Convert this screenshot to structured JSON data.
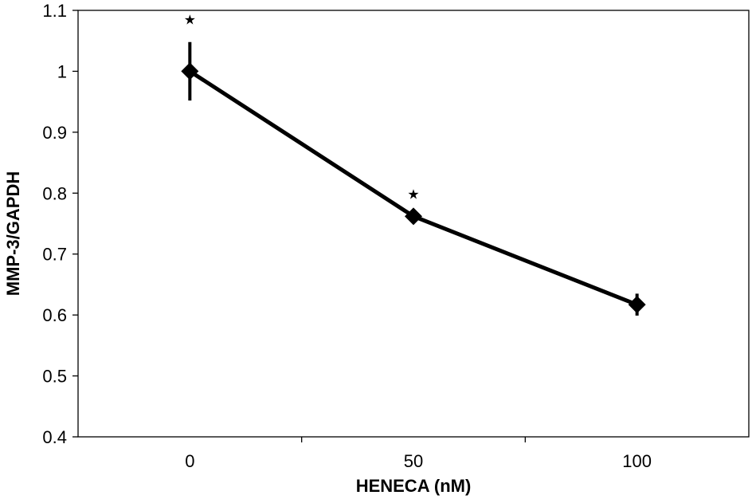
{
  "chart_data": {
    "type": "line",
    "title": "",
    "xlabel": "HENECA (nM)",
    "ylabel": "MMP-3/GAPDH",
    "x_categories": [
      "0",
      "50",
      "100"
    ],
    "ylim": [
      0.4,
      1.1
    ],
    "y_ticks": [
      "0.4",
      "0.5",
      "0.6",
      "0.7",
      "0.8",
      "0.9",
      "1",
      "1.1"
    ],
    "grid": false,
    "series": [
      {
        "color": "#000000",
        "marker": "diamond",
        "values": [
          1.0,
          0.762,
          0.617
        ],
        "errors": [
          0.048,
          0.0,
          0.018
        ]
      }
    ],
    "annotations": [
      "★",
      "★",
      ""
    ]
  }
}
